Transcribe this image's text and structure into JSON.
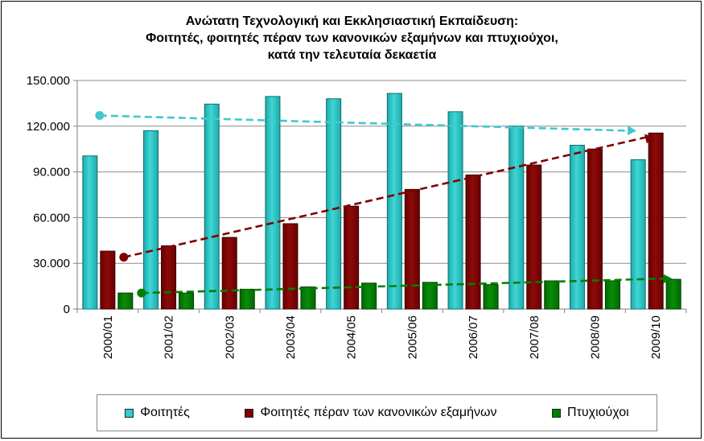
{
  "chart_data": {
    "type": "bar",
    "title_lines": [
      "Ανώτατη Τεχνολογική και Εκκλησιαστική  Εκπαίδευση:",
      "Φοιτητές, φοιτητές πέραν των κανονικών εξαμήνων και πτυχιούχοι,",
      "κατά την τελευταία δεκαετία"
    ],
    "categories": [
      "2000/01",
      "2001/02",
      "2002/03",
      "2003/04",
      "2004/05",
      "2005/06",
      "2006/07",
      "2007/08",
      "2008/09",
      "2009/10"
    ],
    "series": [
      {
        "name": "Φοιτητές",
        "color": "#33CCCC",
        "values": [
          100500,
          117000,
          134500,
          139500,
          138000,
          141500,
          129500,
          120000,
          107500,
          98000
        ]
      },
      {
        "name": "Φοιτητές πέραν των κανονικών εξαμήνων",
        "color": "#800000",
        "values": [
          38000,
          41500,
          47000,
          56000,
          67500,
          78500,
          88000,
          94500,
          105000,
          115500
        ]
      },
      {
        "name": "Πτυχιούχοι",
        "color": "#008000",
        "values": [
          10500,
          10500,
          13000,
          14500,
          17000,
          17500,
          16000,
          18500,
          18500,
          19500
        ]
      }
    ],
    "trendlines": [
      {
        "series": "Φοιτητές",
        "color": "#40C8D0",
        "start": 127000,
        "end": 117000
      },
      {
        "series": "Φοιτητές πέραν των κανονικών εξαμήνων",
        "color": "#800000",
        "start": 34000,
        "end": 113000
      },
      {
        "series": "Πτυχιούχοι",
        "color": "#008000",
        "start": 10500,
        "end": 20000
      }
    ],
    "y_ticks": [
      "0",
      "30.000",
      "60.000",
      "90.000",
      "120.000",
      "150.000"
    ],
    "y_tick_values": [
      0,
      30000,
      60000,
      90000,
      120000,
      150000
    ],
    "ylim": [
      0,
      150000
    ],
    "grid": true,
    "legend_position": "bottom"
  }
}
